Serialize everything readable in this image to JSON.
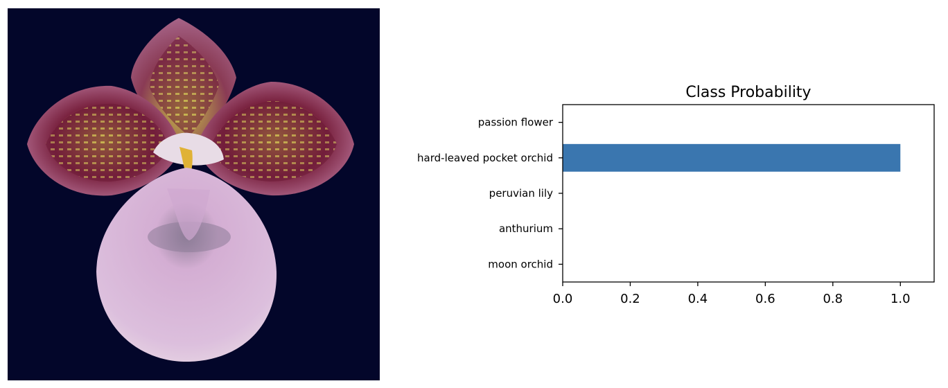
{
  "image_panel": {
    "subject": "flower-photo"
  },
  "chart_data": {
    "type": "bar",
    "orientation": "horizontal",
    "title": "Class Probability",
    "xlabel": "",
    "ylabel": "",
    "categories": [
      "passion flower",
      "hard-leaved pocket orchid",
      "peruvian lily",
      "anthurium",
      "moon orchid"
    ],
    "values": [
      0.0,
      1.0,
      0.0,
      0.0,
      0.0
    ],
    "xlim": [
      0.0,
      1.1
    ],
    "xticks": [
      0.0,
      0.2,
      0.4,
      0.6,
      0.8,
      1.0
    ],
    "xtick_labels": [
      "0.0",
      "0.2",
      "0.4",
      "0.6",
      "0.8",
      "1.0"
    ],
    "bar_color": "#3a76af",
    "grid": false,
    "legend": "none"
  }
}
